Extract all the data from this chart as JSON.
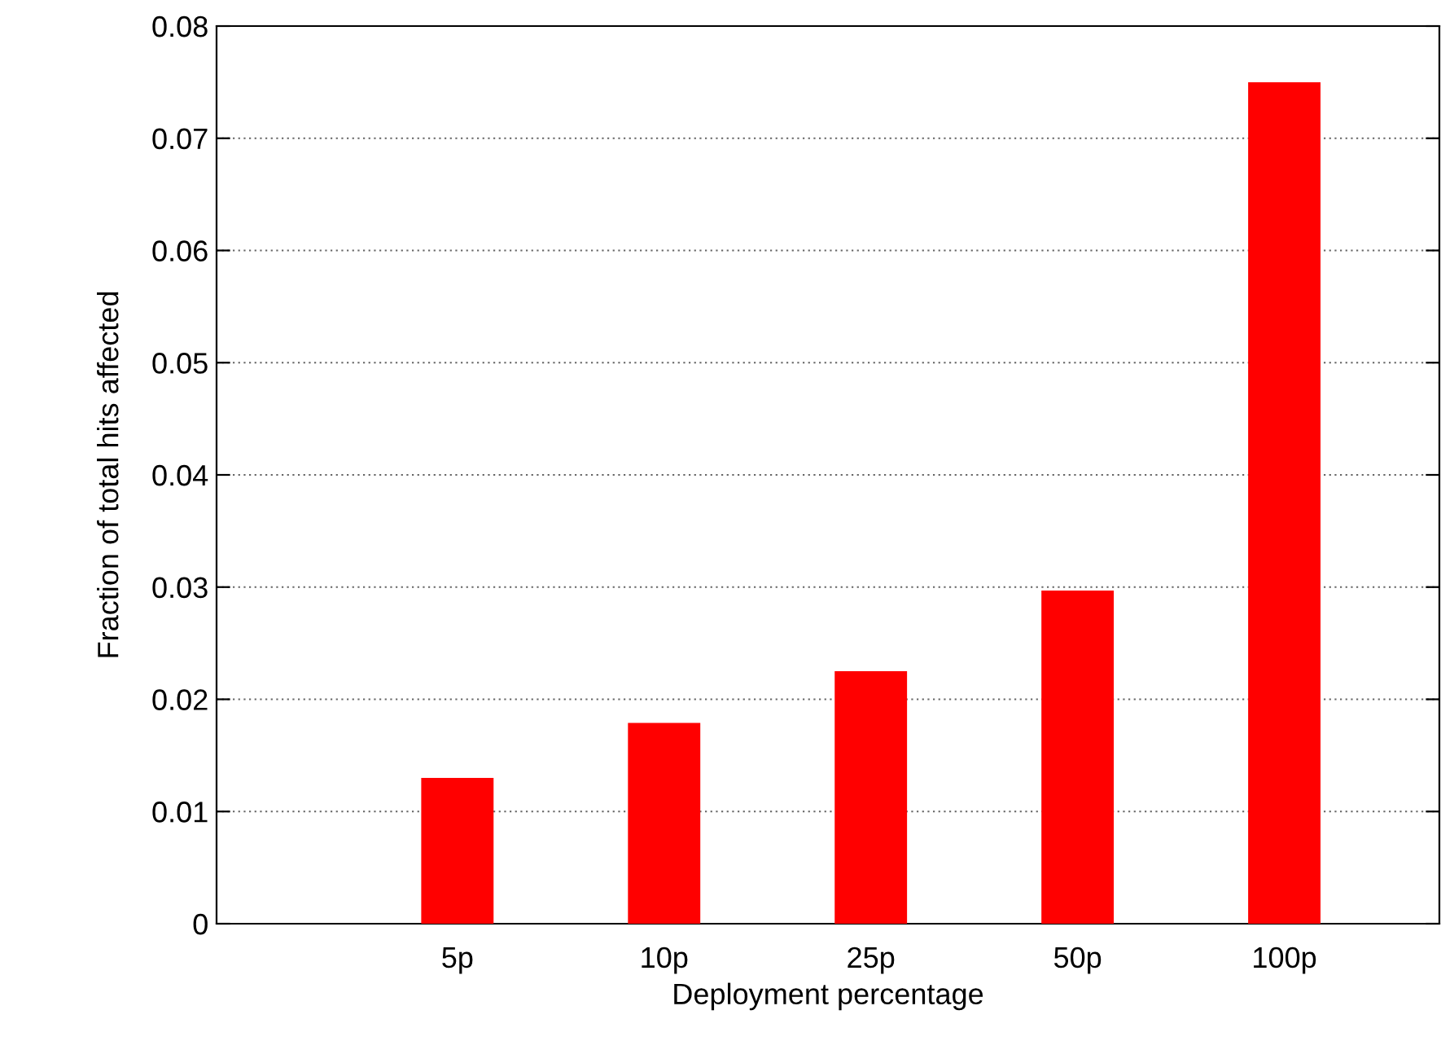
{
  "chart_data": {
    "type": "bar",
    "xlabel": "Deployment percentage",
    "ylabel": "Fraction of total hits affected",
    "categories": [
      "5p",
      "10p",
      "25p",
      "50p",
      "100p"
    ],
    "values": [
      0.013,
      0.0179,
      0.0225,
      0.0297,
      0.075
    ],
    "color": "#ff0000",
    "ylim": [
      0,
      0.08
    ],
    "yticks": [
      0,
      0.01,
      0.02,
      0.03,
      0.04,
      0.05,
      0.06,
      0.07,
      0.08
    ],
    "grid": "y"
  }
}
